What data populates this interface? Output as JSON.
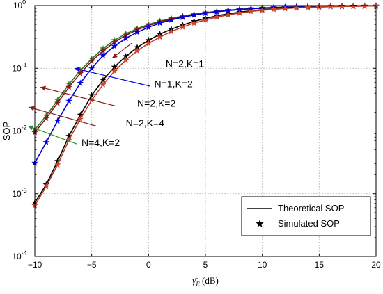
{
  "chart_data": {
    "type": "line",
    "xlabel": "γ̄E (dB)",
    "xlabel_main": "γ̄",
    "xlabel_sub": "E",
    "xlabel_unit": " (dB)",
    "ylabel": "SOP",
    "xlim": [
      -10,
      20
    ],
    "ylim": [
      0.0001,
      1
    ],
    "yscale": "log",
    "grid": true,
    "x_ticks": [
      -10,
      -5,
      0,
      5,
      10,
      15,
      20
    ],
    "x_tick_labels": [
      "−10",
      "−5",
      "0",
      "5",
      "10",
      "15",
      "20"
    ],
    "y_ticks": [
      {
        "value": 0.0001,
        "base": "10",
        "exp": "-4"
      },
      {
        "value": 0.001,
        "base": "10",
        "exp": "-3"
      },
      {
        "value": 0.01,
        "base": "10",
        "exp": "-2"
      },
      {
        "value": 0.1,
        "base": "10",
        "exp": "-1"
      },
      {
        "value": 1,
        "base": "10",
        "exp": "0"
      }
    ],
    "x": [
      -10,
      -9,
      -8,
      -7,
      -6,
      -5,
      -4,
      -3,
      -2,
      -1,
      0,
      1,
      2,
      3,
      4,
      5,
      6,
      7,
      8,
      9,
      10,
      11,
      12,
      13,
      14,
      15,
      16,
      17,
      18,
      19,
      20
    ],
    "series": [
      {
        "name": "N=4,K=2",
        "color": "#2e8b2e",
        "values": [
          0.0105,
          0.0175,
          0.031,
          0.056,
          0.092,
          0.142,
          0.206,
          0.28,
          0.355,
          0.43,
          0.5,
          0.565,
          0.625,
          0.68,
          0.73,
          0.775,
          0.81,
          0.845,
          0.875,
          0.9,
          0.92,
          0.935,
          0.948,
          0.958,
          0.966,
          0.972,
          0.977,
          0.981,
          0.984,
          0.986,
          0.988
        ]
      },
      {
        "name": "N=2,K=2",
        "color": "#8b1a1a",
        "values": [
          0.0095,
          0.016,
          0.028,
          0.05,
          0.083,
          0.13,
          0.19,
          0.26,
          0.335,
          0.41,
          0.48,
          0.55,
          0.61,
          0.665,
          0.715,
          0.76,
          0.8,
          0.835,
          0.865,
          0.89,
          0.91,
          0.928,
          0.942,
          0.953,
          0.962,
          0.969,
          0.975,
          0.979,
          0.983,
          0.985,
          0.987
        ]
      },
      {
        "name": "N=1,K=2",
        "color": "#0000ee",
        "values": [
          0.0031,
          0.0066,
          0.0145,
          0.03,
          0.058,
          0.1,
          0.16,
          0.225,
          0.3,
          0.375,
          0.45,
          0.525,
          0.59,
          0.65,
          0.705,
          0.755,
          0.795,
          0.83,
          0.862,
          0.888,
          0.908,
          0.926,
          0.94,
          0.952,
          0.961,
          0.968,
          0.974,
          0.979,
          0.982,
          0.985,
          0.987
        ]
      },
      {
        "name": "N=2,K=4",
        "color": "#000000",
        "values": [
          0.00072,
          0.0014,
          0.0033,
          0.0083,
          0.018,
          0.037,
          0.065,
          0.105,
          0.155,
          0.215,
          0.28,
          0.35,
          0.42,
          0.49,
          0.56,
          0.625,
          0.685,
          0.74,
          0.785,
          0.825,
          0.86,
          0.888,
          0.91,
          0.928,
          0.943,
          0.955,
          0.964,
          0.971,
          0.977,
          0.981,
          0.985
        ]
      },
      {
        "name": "N=2,K=1",
        "color": "#d2462d",
        "values": [
          0.00065,
          0.0013,
          0.0029,
          0.0072,
          0.0155,
          0.031,
          0.055,
          0.09,
          0.135,
          0.19,
          0.25,
          0.315,
          0.385,
          0.455,
          0.525,
          0.59,
          0.655,
          0.71,
          0.76,
          0.805,
          0.84,
          0.87,
          0.895,
          0.916,
          0.932,
          0.946,
          0.957,
          0.966,
          0.973,
          0.979,
          0.983
        ]
      }
    ],
    "annotations": [
      {
        "text": "N=2,K=1",
        "color": "#8b1a1a",
        "from_x": -1.5,
        "from_y": 0.25,
        "to_x": -3.2,
        "to_y": 0.145,
        "label_x": 1.5,
        "label_y": 0.105
      },
      {
        "text": "N=1,K=2",
        "color": "#0000ee",
        "from_x": 0.1,
        "from_y": 0.052,
        "to_x": -6.5,
        "to_y": 0.1,
        "label_x": 0.5,
        "label_y": 0.05
      },
      {
        "text": "N=2,K=2",
        "color": "#8b1a1a",
        "from_x": -2.9,
        "from_y": 0.025,
        "to_x": -9.5,
        "to_y": 0.05,
        "label_x": -1.0,
        "label_y": 0.0245
      },
      {
        "text": "N=2,K=4",
        "color": "#8b1a1a",
        "from_x": -4.6,
        "from_y": 0.012,
        "to_x": -10.5,
        "to_y": 0.024,
        "label_x": -2.0,
        "label_y": 0.0118
      },
      {
        "text": "N=4,K=2",
        "color": "#2e8b2e",
        "from_x": -6.3,
        "from_y": 0.0062,
        "to_x": -10.6,
        "to_y": 0.012,
        "label_x": -5.9,
        "label_y": 0.0058
      }
    ],
    "legend": {
      "position": "bottom-right",
      "items": [
        {
          "label": "Theoretical SOP",
          "marker": "line"
        },
        {
          "label": "Simulated SOP",
          "marker": "star"
        }
      ]
    }
  }
}
